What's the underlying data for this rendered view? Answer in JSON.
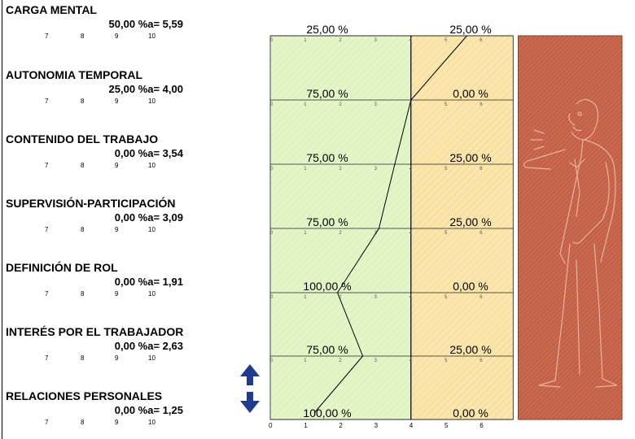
{
  "left_ticks": [
    "7",
    "8",
    "9",
    "10"
  ],
  "factors": [
    {
      "name": "CARGA MENTAL",
      "pct_label": "50,00 %",
      "a_label": "a= 5,59",
      "a": 5.59,
      "green_pct": "25,00 %",
      "yellow_pct": "25,00 %"
    },
    {
      "name": "AUTONOMIA TEMPORAL",
      "pct_label": "25,00 %",
      "a_label": "a= 4,00",
      "a": 4.0,
      "green_pct": "75,00 %",
      "yellow_pct": "0,00 %"
    },
    {
      "name": "CONTENIDO DEL TRABAJO",
      "pct_label": "0,00 %",
      "a_label": "a= 3,54",
      "a": 3.54,
      "green_pct": "75,00 %",
      "yellow_pct": "25,00 %"
    },
    {
      "name": "SUPERVISIÓN-PARTICIPACIÓN",
      "pct_label": "0,00 %",
      "a_label": "a= 3,09",
      "a": 3.09,
      "green_pct": "75,00 %",
      "yellow_pct": "25,00 %"
    },
    {
      "name": "DEFINICIÓN DE ROL",
      "pct_label": "0,00 %",
      "a_label": "a= 1,91",
      "a": 1.91,
      "green_pct": "100,00 %",
      "yellow_pct": "0,00 %"
    },
    {
      "name": "INTERÉS POR EL TRABAJADOR",
      "pct_label": "0,00 %",
      "a_label": "a= 2,63",
      "a": 2.63,
      "green_pct": "75,00 %",
      "yellow_pct": "25,00 %"
    },
    {
      "name": "RELACIONES PERSONALES",
      "pct_label": "0,00 %",
      "a_label": "a= 1,25",
      "a": 1.25,
      "green_pct": "100,00 %",
      "yellow_pct": "0,00 %"
    }
  ],
  "chart_data": {
    "type": "line",
    "categories": [
      "CARGA MENTAL",
      "AUTONOMIA TEMPORAL",
      "CONTENIDO DEL TRABAJO",
      "SUPERVISIÓN-PARTICIPACIÓN",
      "DEFINICIÓN DE ROL",
      "INTERÉS POR EL TRABAJADOR",
      "RELACIONES PERSONALES"
    ],
    "values": [
      5.59,
      4.0,
      3.54,
      3.09,
      1.91,
      2.63,
      1.25
    ],
    "xlim": [
      0,
      10
    ],
    "x_ticks": [
      "0",
      "1",
      "2",
      "3",
      "4",
      "5",
      "6"
    ],
    "zones": [
      {
        "name": "green",
        "range": [
          0,
          4
        ],
        "color": "#e4f6c8"
      },
      {
        "name": "yellow",
        "range": [
          4,
          7
        ],
        "color": "#fbe7ad"
      },
      {
        "name": "red",
        "range": [
          7,
          10
        ],
        "color": "#c96a50"
      }
    ]
  },
  "icons": {
    "scroll": "updown-arrow-icon",
    "figure": "shouting-man-icon"
  }
}
